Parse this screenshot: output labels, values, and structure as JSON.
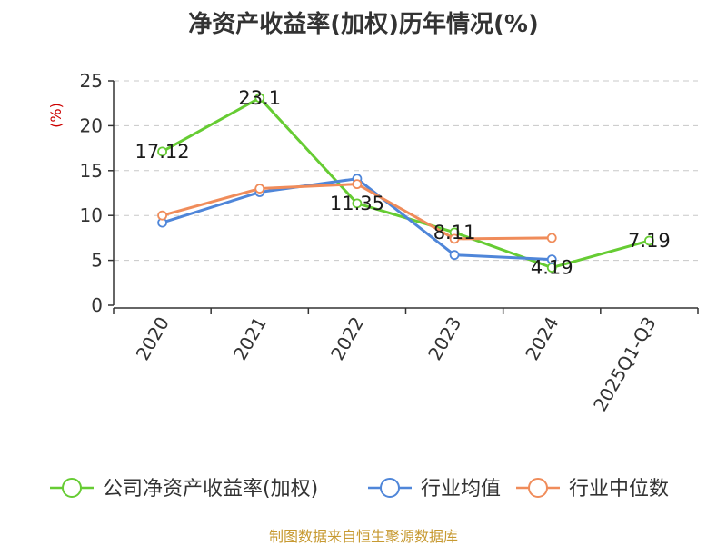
{
  "title": "净资产收益率(加权)历年情况(%)",
  "source": "制图数据来自恒生聚源数据库",
  "chart_data": {
    "type": "line",
    "title": "净资产收益率(加权)历年情况(%)",
    "y_unit": "(%)",
    "categories": [
      "2020",
      "2021",
      "2022",
      "2023",
      "2024",
      "2025Q1-Q3"
    ],
    "ylim": [
      0,
      25
    ],
    "yticks": [
      0,
      5,
      10,
      15,
      20,
      25
    ],
    "grid": true,
    "legend_position": "bottom",
    "series": [
      {
        "name": "公司净资产收益率(加权)",
        "color": "#66cc33",
        "values": [
          17.12,
          23.1,
          11.35,
          8.11,
          4.19,
          7.19
        ],
        "labels": [
          "17.12",
          "23.1",
          "11.35",
          "8.11",
          "4.19",
          "7.19"
        ]
      },
      {
        "name": "行业均值",
        "color": "#4f86d9",
        "values": [
          9.2,
          12.6,
          14.1,
          5.6,
          5.1,
          null
        ]
      },
      {
        "name": "行业中位数",
        "color": "#f08c5a",
        "values": [
          10.0,
          13.0,
          13.5,
          7.4,
          7.5,
          null
        ]
      }
    ]
  }
}
